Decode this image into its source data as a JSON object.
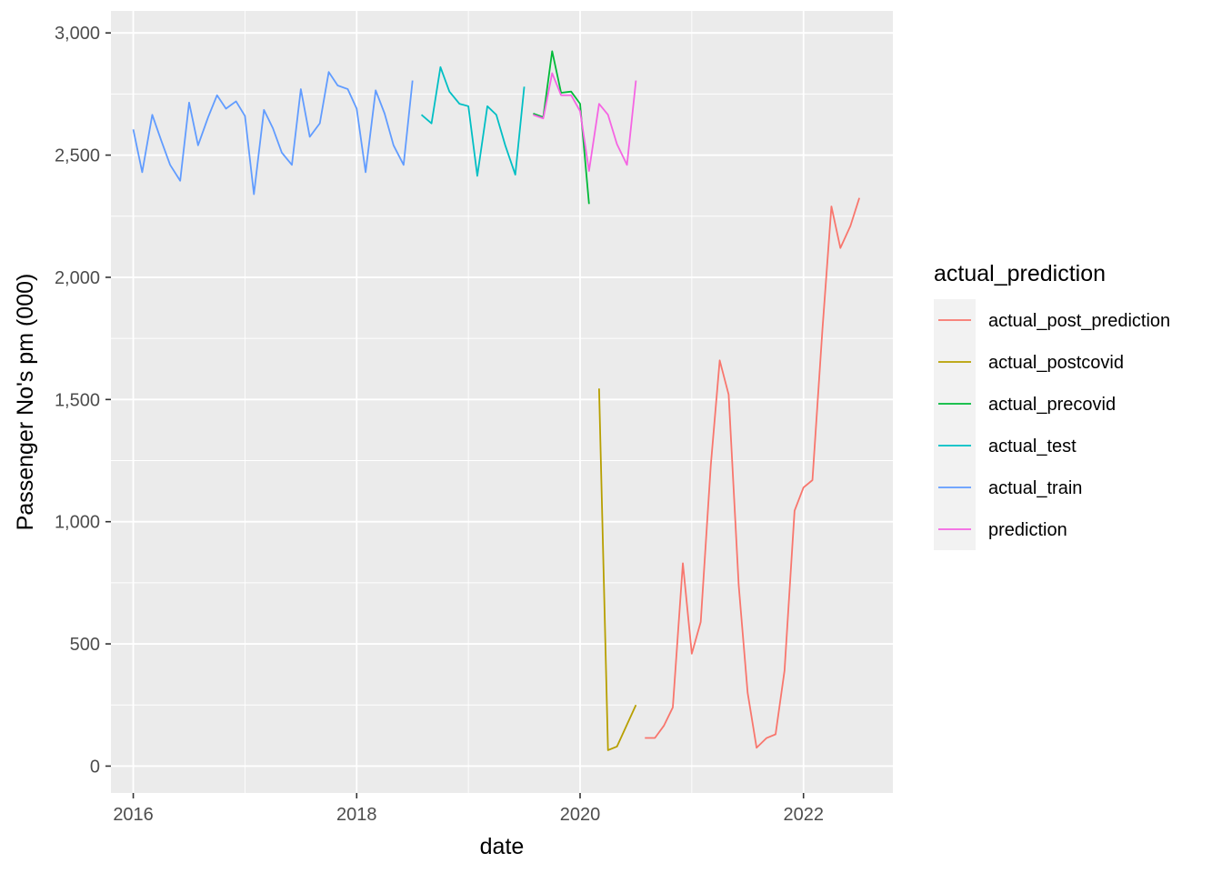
{
  "chart_data": {
    "type": "line",
    "xlabel": "date",
    "ylabel": "Passenger No's pm (000)",
    "xlim": [
      2015.8,
      2022.8
    ],
    "ylim": [
      -110,
      3090
    ],
    "x_ticks": [
      2016,
      2018,
      2020,
      2022
    ],
    "x_tick_labels": [
      "2016",
      "2018",
      "2020",
      "2022"
    ],
    "y_ticks": [
      0,
      500,
      1000,
      1500,
      2000,
      2500,
      3000
    ],
    "y_tick_labels": [
      "0",
      "500",
      "1,000",
      "1,500",
      "2,000",
      "2,500",
      "3,000"
    ],
    "grid": true,
    "legend": {
      "title": "actual_prediction",
      "position": "right",
      "entries": [
        "actual_post_prediction",
        "actual_postcovid",
        "actual_precovid",
        "actual_test",
        "actual_train",
        "prediction"
      ]
    },
    "series": [
      {
        "name": "actual_post_prediction",
        "color": "#F8766D",
        "points": [
          [
            2020.58,
            115
          ],
          [
            2020.67,
            115
          ],
          [
            2020.75,
            165
          ],
          [
            2020.83,
            240
          ],
          [
            2020.92,
            830
          ],
          [
            2021.0,
            460
          ],
          [
            2021.08,
            590
          ],
          [
            2021.17,
            1230
          ],
          [
            2021.25,
            1660
          ],
          [
            2021.33,
            1520
          ],
          [
            2021.42,
            740
          ],
          [
            2021.5,
            300
          ],
          [
            2021.58,
            75
          ],
          [
            2021.67,
            115
          ],
          [
            2021.75,
            130
          ],
          [
            2021.83,
            390
          ],
          [
            2021.92,
            1045
          ],
          [
            2022.0,
            1140
          ],
          [
            2022.08,
            1170
          ],
          [
            2022.17,
            1790
          ],
          [
            2022.25,
            2290
          ],
          [
            2022.33,
            2120
          ],
          [
            2022.42,
            2210
          ],
          [
            2022.5,
            2325
          ]
        ]
      },
      {
        "name": "actual_postcovid",
        "color": "#B79F00",
        "points": [
          [
            2020.17,
            1545
          ],
          [
            2020.25,
            65
          ],
          [
            2020.33,
            80
          ],
          [
            2020.42,
            170
          ],
          [
            2020.5,
            250
          ]
        ]
      },
      {
        "name": "actual_precovid",
        "color": "#00BA38",
        "points": [
          [
            2019.58,
            2670
          ],
          [
            2019.67,
            2655
          ],
          [
            2019.75,
            2925
          ],
          [
            2019.83,
            2755
          ],
          [
            2019.92,
            2760
          ],
          [
            2020.0,
            2710
          ],
          [
            2020.08,
            2300
          ]
        ]
      },
      {
        "name": "actual_test",
        "color": "#00BFC4",
        "points": [
          [
            2018.58,
            2665
          ],
          [
            2018.67,
            2630
          ],
          [
            2018.75,
            2860
          ],
          [
            2018.83,
            2760
          ],
          [
            2018.92,
            2710
          ],
          [
            2019.0,
            2700
          ],
          [
            2019.08,
            2415
          ],
          [
            2019.17,
            2700
          ],
          [
            2019.25,
            2665
          ],
          [
            2019.33,
            2540
          ],
          [
            2019.42,
            2420
          ],
          [
            2019.5,
            2780
          ]
        ]
      },
      {
        "name": "actual_train",
        "color": "#619CFF",
        "points": [
          [
            2016.0,
            2605
          ],
          [
            2016.08,
            2430
          ],
          [
            2016.17,
            2665
          ],
          [
            2016.25,
            2560
          ],
          [
            2016.33,
            2460
          ],
          [
            2016.42,
            2395
          ],
          [
            2016.5,
            2715
          ],
          [
            2016.58,
            2540
          ],
          [
            2016.67,
            2655
          ],
          [
            2016.75,
            2745
          ],
          [
            2016.83,
            2690
          ],
          [
            2016.92,
            2720
          ],
          [
            2017.0,
            2660
          ],
          [
            2017.08,
            2340
          ],
          [
            2017.17,
            2685
          ],
          [
            2017.25,
            2610
          ],
          [
            2017.33,
            2510
          ],
          [
            2017.42,
            2460
          ],
          [
            2017.5,
            2770
          ],
          [
            2017.58,
            2575
          ],
          [
            2017.67,
            2630
          ],
          [
            2017.75,
            2840
          ],
          [
            2017.83,
            2785
          ],
          [
            2017.92,
            2770
          ],
          [
            2018.0,
            2690
          ],
          [
            2018.08,
            2430
          ],
          [
            2018.17,
            2765
          ],
          [
            2018.25,
            2670
          ],
          [
            2018.33,
            2540
          ],
          [
            2018.42,
            2460
          ],
          [
            2018.5,
            2805
          ]
        ]
      },
      {
        "name": "prediction",
        "color": "#F564E3",
        "points": [
          [
            2019.58,
            2665
          ],
          [
            2019.67,
            2650
          ],
          [
            2019.75,
            2835
          ],
          [
            2019.83,
            2745
          ],
          [
            2019.92,
            2745
          ],
          [
            2020.0,
            2680
          ],
          [
            2020.08,
            2435
          ],
          [
            2020.17,
            2710
          ],
          [
            2020.25,
            2665
          ],
          [
            2020.33,
            2545
          ],
          [
            2020.42,
            2460
          ],
          [
            2020.5,
            2805
          ]
        ]
      }
    ]
  }
}
